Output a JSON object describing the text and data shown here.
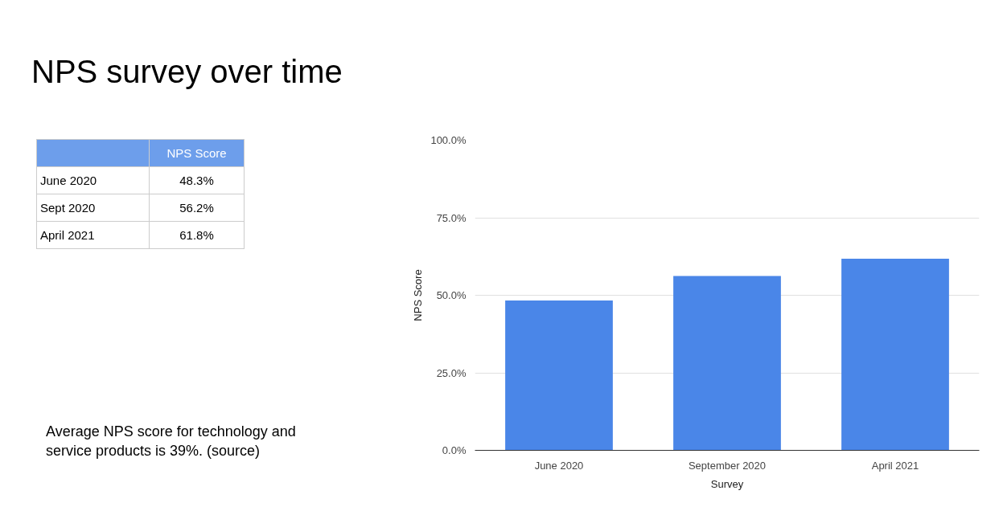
{
  "chart_data": [
    {
      "type": "other",
      "title": "NPS survey over time",
      "categories": [
        "June 2020",
        "Sept 2020",
        "April 2021"
      ],
      "value_labels": [
        "48.3%",
        "56.2%",
        "61.8%"
      ],
      "annotations": [
        "NPS Score",
        "Average NPS score for technology and service products is 39%. (source)"
      ]
    },
    {
      "type": "bar",
      "categories": [
        "June 2020",
        "September 2020",
        "April 2021"
      ],
      "values": [
        48.3,
        56.2,
        61.8
      ],
      "color": "#4a86e8",
      "xlabel": "Survey",
      "ylabel": "NPS Score",
      "ylim": [
        0,
        100
      ],
      "yticks": [
        {
          "value": 0,
          "label": "0.0%"
        },
        {
          "value": 25,
          "label": "25.0%"
        },
        {
          "value": 50,
          "label": "50.0%"
        },
        {
          "value": 75,
          "label": "75.0%"
        },
        {
          "value": 100,
          "label": "100.0%"
        }
      ],
      "grid": "y"
    }
  ]
}
